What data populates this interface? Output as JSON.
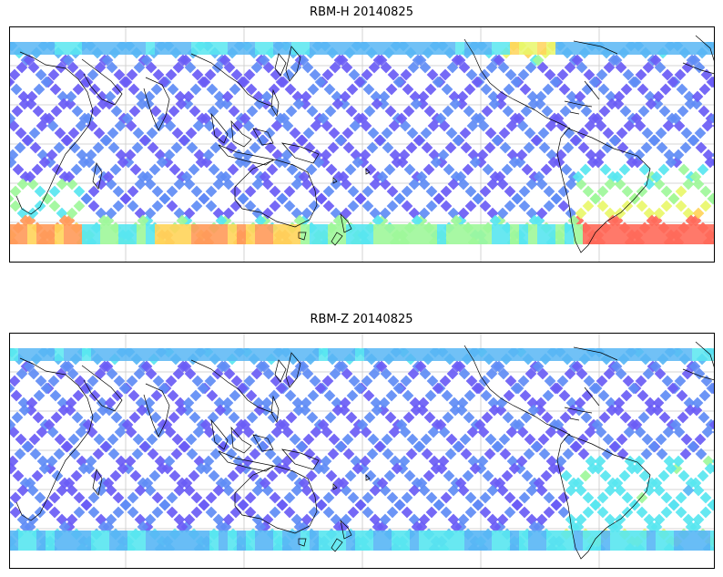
{
  "panels": [
    {
      "title": "RBM-H 20140825",
      "variable": "RBM-H",
      "date": "20140825"
    },
    {
      "title": "RBM-Z 20140825",
      "variable": "RBM-Z",
      "date": "20140825"
    }
  ],
  "colormap": [
    "#6a5cf5",
    "#5f8cf5",
    "#58b6f5",
    "#58e6f0",
    "#9ef79a",
    "#e9f76a",
    "#ffd45a",
    "#ff9a5a",
    "#ff6a5a"
  ],
  "colors": {
    "land_outline": "#000000",
    "grid": "#c8c8c8",
    "frame": "#000000",
    "background": "#ffffff"
  }
}
